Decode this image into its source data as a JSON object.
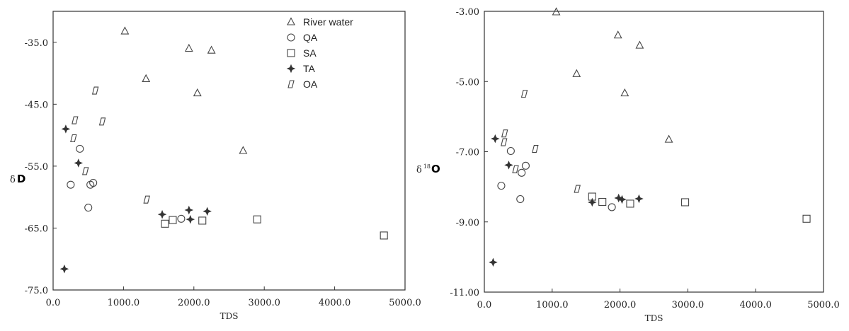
{
  "chart_data": [
    {
      "type": "scatter",
      "xlabel": "TDS",
      "ylabel": {
        "delta": "δ",
        "main": "D"
      },
      "xlim": [
        0,
        5000
      ],
      "ylim": [
        -75,
        -30
      ],
      "x_ticks": [
        0,
        1000,
        2000,
        3000,
        4000,
        5000
      ],
      "x_tick_labels": [
        "0.0",
        "1000.0",
        "2000.0",
        "3000.0",
        "4000.0",
        "5000.0"
      ],
      "y_ticks": [
        -35,
        -45,
        -55,
        -65,
        -75
      ],
      "y_tick_labels": [
        "-35.0",
        "-45.0",
        "-55.0",
        "-65.0",
        "-75.0"
      ],
      "grid": false,
      "legend": "top-right",
      "series": [
        {
          "name": "River water",
          "marker": "triangle",
          "x": [
            1020,
            1320,
            1930,
            2050,
            2250,
            2700
          ],
          "y": [
            -33.2,
            -40.9,
            -36.0,
            -43.2,
            -36.3,
            -52.5
          ]
        },
        {
          "name": "QA",
          "marker": "circle",
          "x": [
            250,
            380,
            500,
            530,
            570,
            1820
          ],
          "y": [
            -58.0,
            -52.2,
            -61.7,
            -58.0,
            -57.7,
            -63.5
          ]
        },
        {
          "name": "SA",
          "marker": "square",
          "x": [
            1590,
            1700,
            2120,
            2900,
            4700
          ],
          "y": [
            -64.3,
            -63.7,
            -63.8,
            -63.6,
            -66.2
          ]
        },
        {
          "name": "TA",
          "marker": "cross",
          "x": [
            160,
            180,
            360,
            1550,
            1930,
            1950,
            2190
          ],
          "y": [
            -71.6,
            -49.0,
            -54.5,
            -62.8,
            -62.1,
            -63.6,
            -62.3
          ]
        },
        {
          "name": "OA",
          "marker": "parallelogram",
          "x": [
            290,
            310,
            460,
            600,
            700,
            1330
          ],
          "y": [
            -50.5,
            -47.6,
            -55.8,
            -42.8,
            -47.8,
            -60.4
          ]
        }
      ]
    },
    {
      "type": "scatter",
      "xlabel": "TDS",
      "ylabel": {
        "delta": "δ",
        "sup": "18",
        "main": "O"
      },
      "xlim": [
        0,
        5000
      ],
      "ylim": [
        -11,
        -3
      ],
      "x_ticks": [
        0,
        1000,
        2000,
        3000,
        4000,
        5000
      ],
      "x_tick_labels": [
        "0.0",
        "1000.0",
        "2000.0",
        "3000.0",
        "4000.0",
        "5000.0"
      ],
      "y_ticks": [
        -3,
        -5,
        -7,
        -9,
        -11
      ],
      "y_tick_labels": [
        "-3.00",
        "-5.00",
        "-7.00",
        "-9.00",
        "-11.00"
      ],
      "grid": false,
      "series": [
        {
          "name": "River water",
          "marker": "triangle",
          "x": [
            1060,
            1360,
            1970,
            2070,
            2290,
            2720
          ],
          "y": [
            -3.02,
            -4.78,
            -3.68,
            -5.33,
            -3.97,
            -6.65
          ]
        },
        {
          "name": "QA",
          "marker": "circle",
          "x": [
            250,
            390,
            530,
            550,
            610,
            1880
          ],
          "y": [
            -7.97,
            -6.98,
            -8.35,
            -7.6,
            -7.4,
            -8.58
          ]
        },
        {
          "name": "SA",
          "marker": "square",
          "x": [
            1590,
            1740,
            2150,
            2960,
            4750
          ],
          "y": [
            -8.28,
            -8.43,
            -8.48,
            -8.44,
            -8.91
          ]
        },
        {
          "name": "TA",
          "marker": "cross",
          "x": [
            130,
            160,
            360,
            1590,
            1980,
            2030,
            2280
          ],
          "y": [
            -10.15,
            -6.63,
            -7.38,
            -8.44,
            -8.32,
            -8.36,
            -8.34
          ]
        },
        {
          "name": "OA",
          "marker": "parallelogram",
          "x": [
            290,
            300,
            460,
            590,
            750,
            1370
          ],
          "y": [
            -6.73,
            -6.48,
            -7.5,
            -5.35,
            -6.92,
            -8.06
          ]
        }
      ]
    }
  ]
}
